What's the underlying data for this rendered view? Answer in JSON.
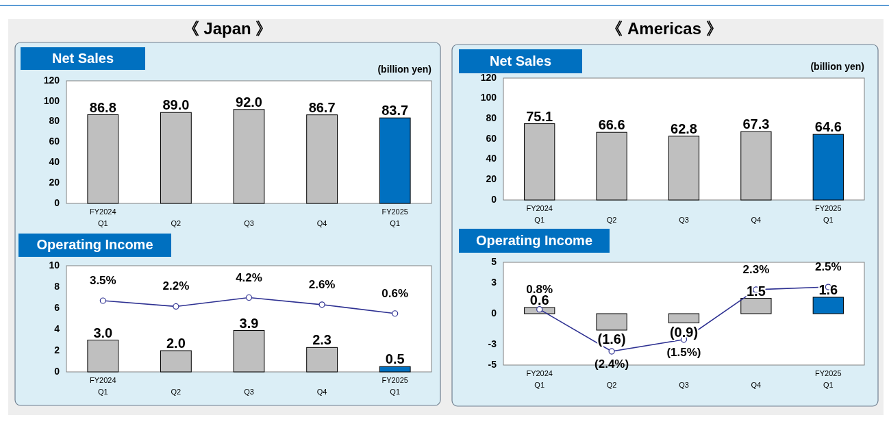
{
  "chart_data": [
    {
      "type": "bar",
      "title": "Net Sales",
      "annotations": [
        "《 Japan 》"
      ],
      "ylabel": "(billion yen)",
      "categories": [
        "FY2024 Q1",
        "Q2",
        "Q3",
        "Q4",
        "FY2025 Q1"
      ],
      "series": [
        {
          "values": [
            86.8,
            89.0,
            92.0,
            86.7,
            83.7
          ],
          "colors": [
            "#bfbfbf",
            "#bfbfbf",
            "#bfbfbf",
            "#bfbfbf",
            "#0070c0"
          ],
          "value_labels": [
            "86.8",
            "89.0",
            "92.0",
            "86.7",
            "83.7"
          ]
        }
      ],
      "ylim": [
        0,
        120
      ],
      "yticks": [
        0,
        20,
        40,
        60,
        80,
        100,
        120
      ]
    },
    {
      "type": "bar",
      "title": "Operating Income",
      "categories": [
        "FY2024 Q1",
        "Q2",
        "Q3",
        "Q4",
        "FY2025 Q1"
      ],
      "series": [
        {
          "values": [
            3.0,
            2.0,
            3.9,
            2.3,
            0.5
          ],
          "colors": [
            "#bfbfbf",
            "#bfbfbf",
            "#bfbfbf",
            "#bfbfbf",
            "#0070c0"
          ],
          "value_labels": [
            "3.0",
            "2.0",
            "3.9",
            "2.3",
            "0.5"
          ]
        },
        {
          "type": "line",
          "axis": "y2",
          "color": "#2e3192",
          "values": [
            3.5,
            2.2,
            4.2,
            2.6,
            0.6
          ],
          "value_labels": [
            "3.5%",
            "2.2%",
            "4.2%",
            "2.6%",
            "0.6%"
          ]
        }
      ],
      "ylim": [
        0,
        10
      ],
      "yticks": [
        0,
        2,
        4,
        6,
        8,
        10
      ],
      "y2lim": [
        -12.6,
        11.4
      ],
      "marker": "circle"
    },
    {
      "type": "bar",
      "title": "Net Sales",
      "annotations": [
        "《 Americas 》"
      ],
      "ylabel": "(billion yen)",
      "categories": [
        "FY2024 Q1",
        "Q2",
        "Q3",
        "Q4",
        "FY2025 Q1"
      ],
      "series": [
        {
          "values": [
            75.1,
            66.6,
            62.8,
            67.3,
            64.6
          ],
          "colors": [
            "#bfbfbf",
            "#bfbfbf",
            "#bfbfbf",
            "#bfbfbf",
            "#0070c0"
          ],
          "value_labels": [
            "75.1",
            "66.6",
            "62.8",
            "67.3",
            "64.6"
          ]
        }
      ],
      "ylim": [
        0,
        120
      ],
      "yticks": [
        0,
        20,
        40,
        60,
        80,
        100,
        120
      ]
    },
    {
      "type": "bar",
      "title": "Operating Income",
      "categories": [
        "FY2024 Q1",
        "Q2",
        "Q3",
        "Q4",
        "FY2025 Q1"
      ],
      "series": [
        {
          "values": [
            0.6,
            -1.6,
            -0.9,
            1.5,
            1.6
          ],
          "colors": [
            "#bfbfbf",
            "#bfbfbf",
            "#bfbfbf",
            "#bfbfbf",
            "#0070c0"
          ],
          "value_labels": [
            "0.6",
            "(1.6)",
            "(0.9)",
            "1.5",
            "1.6"
          ]
        },
        {
          "type": "line",
          "axis": "y2",
          "color": "#2e3192",
          "values": [
            0.8,
            -2.4,
            -1.5,
            2.3,
            2.5
          ],
          "value_labels": [
            "0.8%",
            "(2.4%)",
            "(1.5%)",
            "2.3%",
            "2.5%"
          ]
        }
      ],
      "ylim": [
        -5,
        5
      ],
      "yticks": [
        -5,
        -3,
        0,
        3,
        5
      ],
      "y2lim": [
        -3.44,
        4.38
      ],
      "marker": "circle"
    }
  ]
}
